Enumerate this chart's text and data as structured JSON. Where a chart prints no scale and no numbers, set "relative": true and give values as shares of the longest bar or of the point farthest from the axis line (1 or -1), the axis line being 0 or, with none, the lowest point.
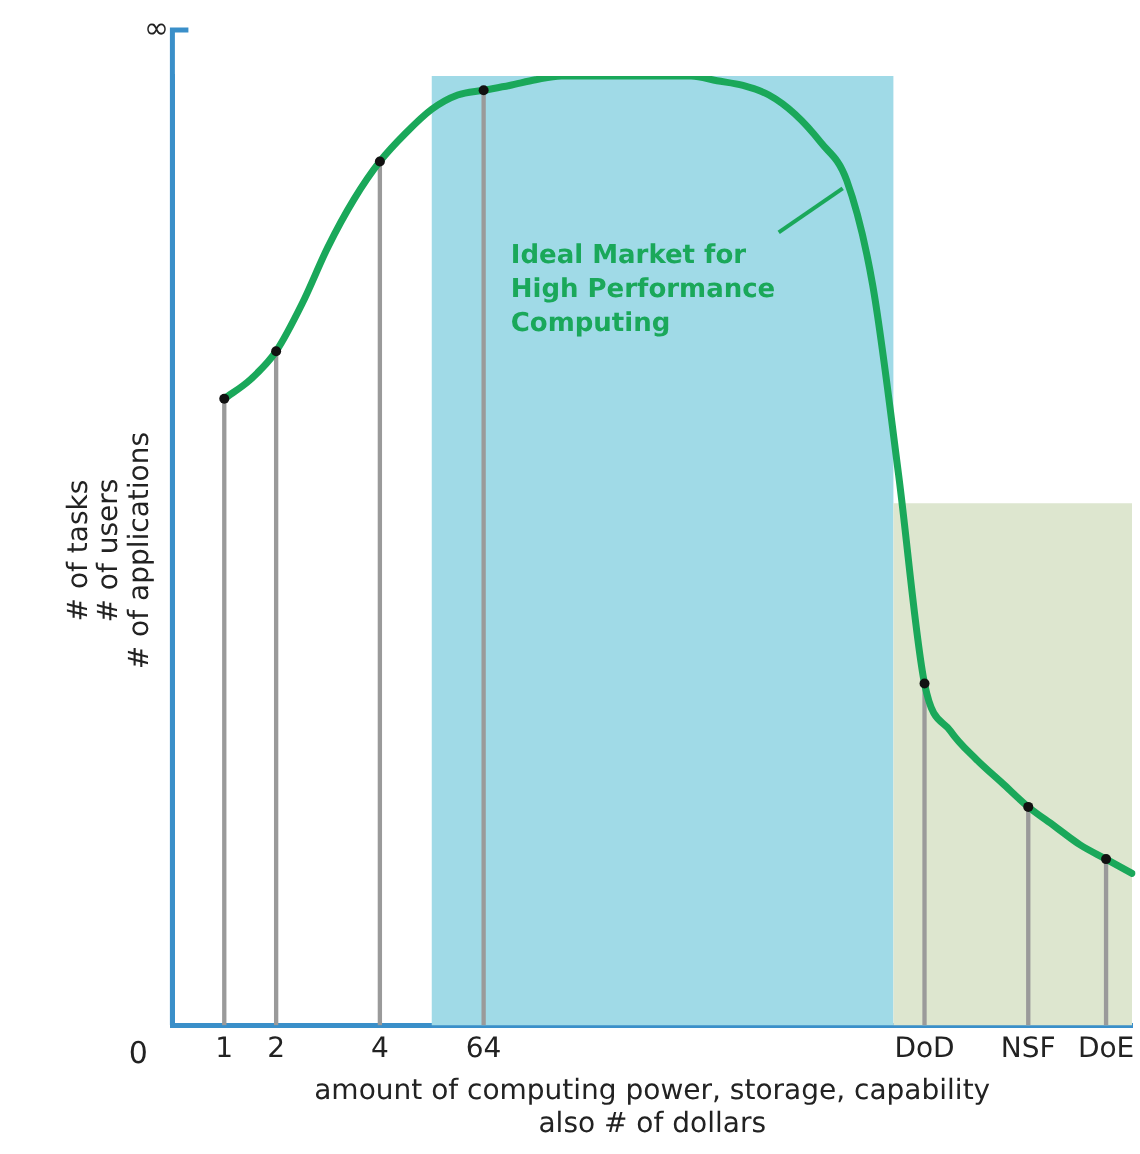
{
  "chart_data": {
    "type": "line",
    "relative": true,
    "xlabel": "amount of computing power, storage, capability\nalso # of dollars",
    "ylabel": "# of tasks\n# of users\n# of applications",
    "categories": [
      null,
      null,
      "1",
      null,
      "2",
      null,
      null,
      null,
      "4",
      null,
      null,
      null,
      "64",
      null,
      null,
      null,
      null,
      null,
      null,
      null,
      null,
      null,
      null,
      null,
      null,
      null,
      null,
      null,
      null,
      "DoD",
      null,
      null,
      null,
      "NSF",
      null,
      null,
      "DoE",
      null
    ],
    "series": [
      {
        "name": "Ideal Market for High Performance Computing",
        "color": "#1aa85a",
        "values": [
          null,
          null,
          0.66,
          0.68,
          0.71,
          0.76,
          0.82,
          0.87,
          0.91,
          0.94,
          0.965,
          0.98,
          0.985,
          0.99,
          0.996,
          1,
          1,
          1,
          1,
          1,
          1,
          0.995,
          0.99,
          0.98,
          0.96,
          0.93,
          0.89,
          0.78,
          0.58,
          0.36,
          0.31,
          0.28,
          0.255,
          0.23,
          0.21,
          0.19,
          0.175,
          0.16
        ]
      },
      {
        "type": "lollipop",
        "color": "#111111",
        "marker": "circle",
        "values": [
          null,
          null,
          0.66,
          null,
          0.71,
          null,
          null,
          null,
          0.91,
          null,
          null,
          null,
          0.985,
          null,
          null,
          null,
          null,
          null,
          null,
          null,
          null,
          null,
          null,
          null,
          null,
          null,
          null,
          null,
          null,
          0.36,
          null,
          null,
          null,
          0.23,
          null,
          null,
          0.175,
          null
        ]
      }
    ],
    "annotations": [
      "0",
      "∞"
    ],
    "legend": false
  }
}
